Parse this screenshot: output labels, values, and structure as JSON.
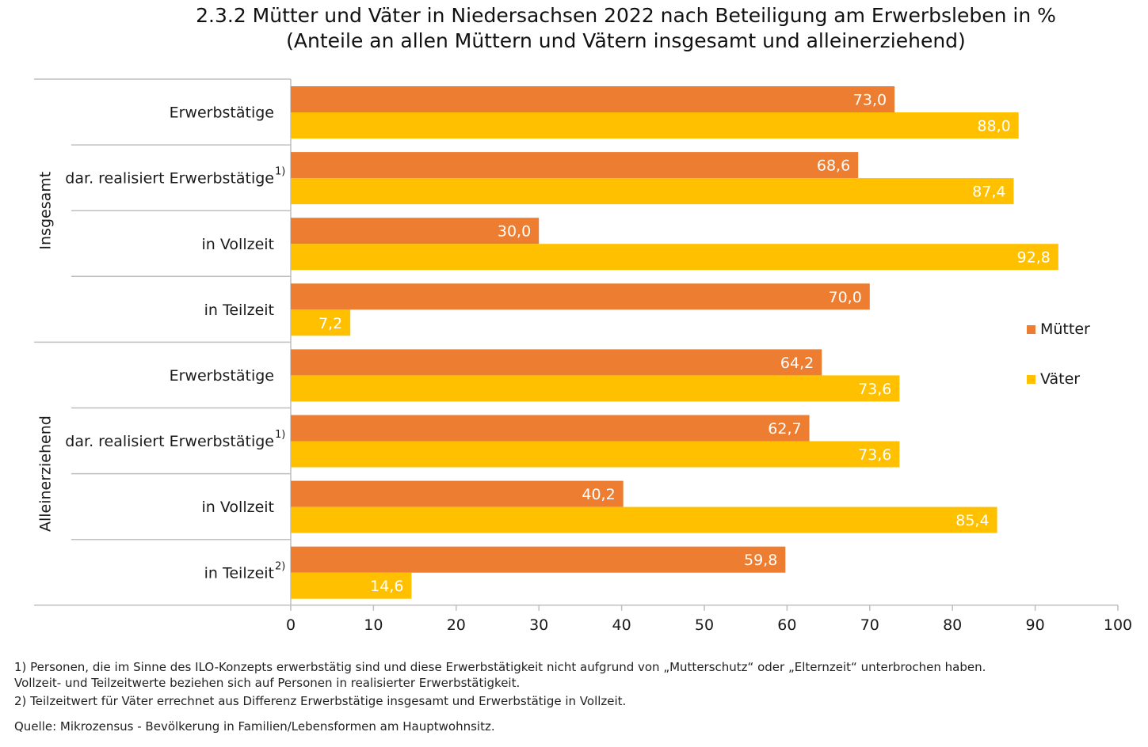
{
  "title_line1": "2.3.2 Mütter und Väter in Niedersachsen 2022 nach Beteiligung am Erwerbsleben in %",
  "title_line2": "(Anteile an allen Müttern und Vätern insgesamt und alleinerziehend)",
  "colors": {
    "muetter": "#ED7D31",
    "vaeter": "#FFC000",
    "axis": "#BFBFBF"
  },
  "chart_data": {
    "type": "bar",
    "orientation": "horizontal",
    "groups": [
      {
        "label": "Insgesamt",
        "categories": [
          {
            "label": "Erwerbstätige",
            "sup": ""
          },
          {
            "label": "dar. realisiert Erwerbstätige",
            "sup": "1)"
          },
          {
            "label": "in Vollzeit",
            "sup": ""
          },
          {
            "label": "in Teilzeit",
            "sup": ""
          }
        ]
      },
      {
        "label": "Alleinerziehend",
        "categories": [
          {
            "label": "Erwerbstätige",
            "sup": ""
          },
          {
            "label": "dar. realisiert Erwerbstätige",
            "sup": "1)"
          },
          {
            "label": "in Vollzeit",
            "sup": ""
          },
          {
            "label": "in Teilzeit",
            "sup": "2)"
          }
        ]
      }
    ],
    "series": [
      {
        "name": "Mütter",
        "values": [
          73.0,
          68.6,
          30.0,
          70.0,
          64.2,
          62.7,
          40.2,
          59.8
        ],
        "labels": [
          "73,0",
          "68,6",
          "30,0",
          "70,0",
          "64,2",
          "62,7",
          "40,2",
          "59,8"
        ]
      },
      {
        "name": "Väter",
        "values": [
          88.0,
          87.4,
          92.8,
          7.2,
          73.6,
          73.6,
          85.4,
          14.6
        ],
        "labels": [
          "88,0",
          "87,4",
          "92,8",
          "7,2",
          "73,6",
          "73,6",
          "85,4",
          "14,6"
        ]
      }
    ],
    "xlim": [
      0,
      100
    ],
    "xticks": [
      "0",
      "10",
      "20",
      "30",
      "40",
      "50",
      "60",
      "70",
      "80",
      "90",
      "100"
    ],
    "grid": false,
    "legend_position": "right"
  },
  "legend": {
    "muetter": "Mütter",
    "vaeter": "Väter"
  },
  "footnotes": {
    "fn1_line1": "1) Personen, die im Sinne des ILO-Konzepts erwerbstätig sind und diese Erwerbstätigkeit nicht aufgrund von „Mutterschutz“ oder „Elternzeit“ unterbrochen haben.",
    "fn1_line2": "Vollzeit- und Teilzeitwerte beziehen sich auf Personen in realisierter Erwerbstätigkeit.",
    "fn2": "2) Teilzeitwert für Väter errechnet aus Differenz Erwerbstätige insgesamt und Erwerbstätige in Vollzeit.",
    "source": "Quelle: Mikrozensus - Bevölkerung in Familien/Lebensformen am Hauptwohnsitz."
  }
}
